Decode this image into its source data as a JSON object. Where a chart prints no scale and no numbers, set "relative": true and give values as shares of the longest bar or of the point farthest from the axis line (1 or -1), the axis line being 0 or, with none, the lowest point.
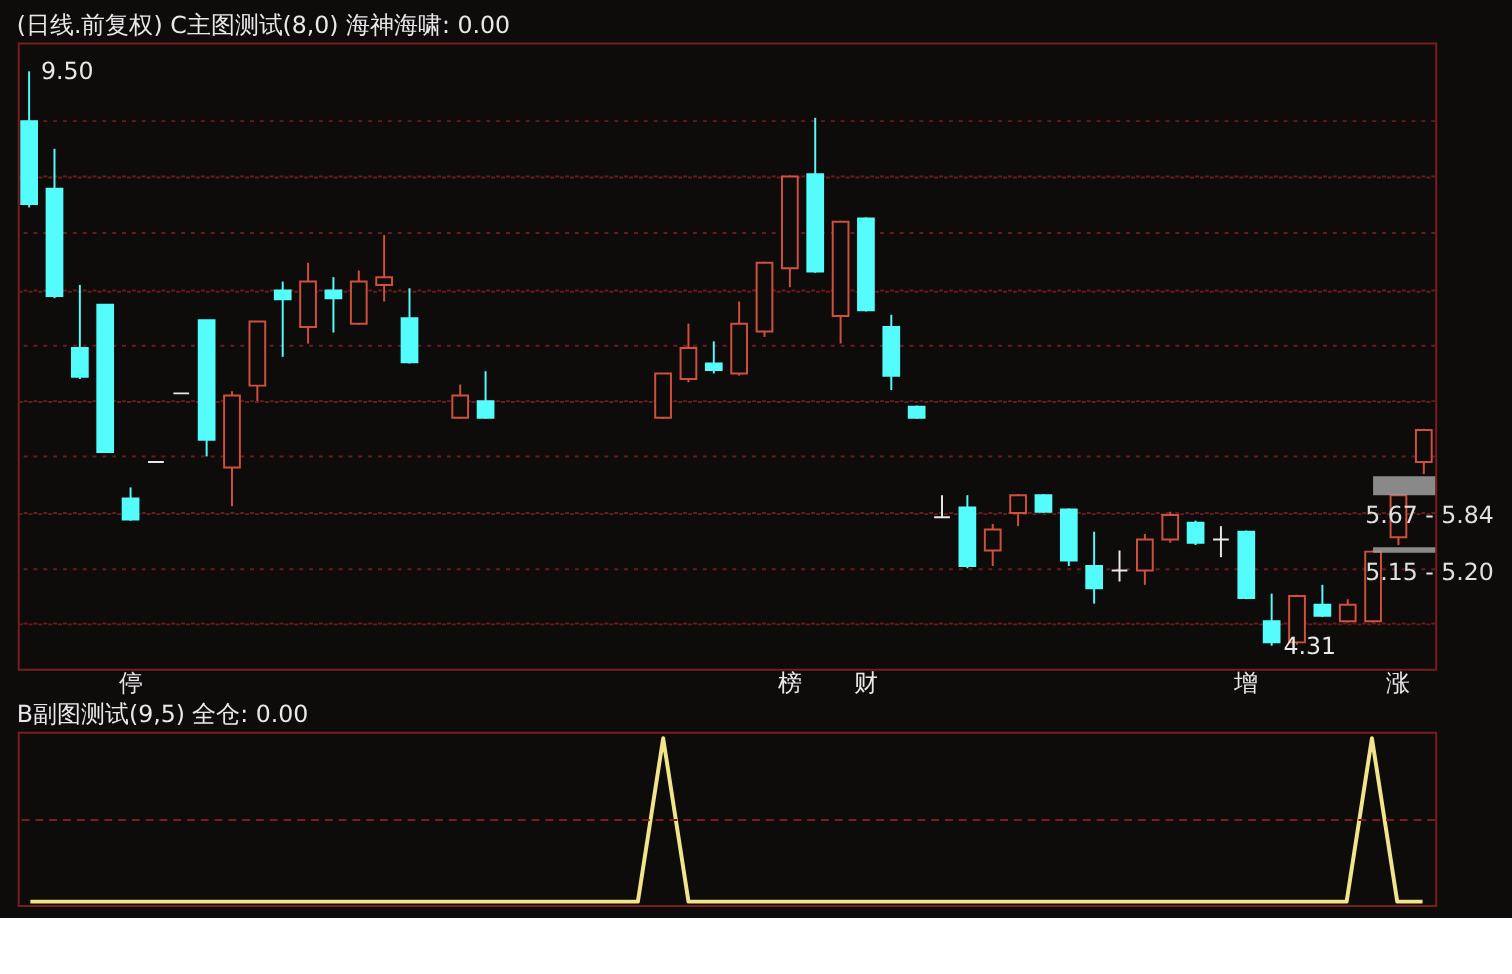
{
  "chart_data": [
    {
      "type": "candlestick",
      "title": "(日线.前复权) C主图测试(8,0) 海神海啸: 0.00",
      "categories": [
        null,
        null,
        null,
        null,
        "停",
        null,
        null,
        null,
        null,
        null,
        null,
        null,
        null,
        null,
        null,
        null,
        null,
        null,
        null,
        null,
        null,
        null,
        null,
        null,
        null,
        null,
        null,
        null,
        null,
        null,
        "榜",
        null,
        null,
        "财",
        null,
        null,
        null,
        null,
        null,
        null,
        null,
        null,
        null,
        null,
        null,
        null,
        null,
        null,
        "增",
        null,
        null,
        null,
        null,
        null,
        "涨",
        null
      ],
      "ohlc": [
        [
          9.05,
          9.5,
          8.27,
          8.3
        ],
        [
          8.44,
          8.8,
          7.45,
          7.47
        ],
        [
          7.0,
          7.57,
          6.72,
          6.74
        ],
        [
          7.39,
          7.39,
          6.06,
          6.06
        ],
        [
          5.64,
          5.74,
          5.44,
          5.45
        ],
        [
          5.97,
          5.97,
          5.97,
          5.97
        ],
        [
          6.59,
          6.59,
          6.59,
          6.59
        ],
        [
          7.25,
          7.25,
          6.02,
          6.17
        ],
        [
          5.92,
          6.61,
          5.57,
          6.57
        ],
        [
          6.66,
          7.24,
          6.52,
          7.24
        ],
        [
          7.52,
          7.6,
          6.92,
          7.44
        ],
        [
          7.19,
          7.77,
          7.04,
          7.6
        ],
        [
          7.52,
          7.64,
          7.14,
          7.45
        ],
        [
          7.22,
          7.7,
          7.21,
          7.6
        ],
        [
          7.57,
          8.02,
          7.42,
          7.64
        ],
        [
          7.27,
          7.54,
          6.86,
          6.87
        ],
        null,
        [
          6.37,
          6.67,
          6.36,
          6.57
        ],
        [
          6.52,
          6.79,
          6.36,
          6.37
        ],
        null,
        null,
        null,
        null,
        null,
        null,
        [
          6.37,
          6.77,
          6.36,
          6.77
        ],
        [
          6.72,
          7.22,
          6.69,
          7.0
        ],
        [
          6.86,
          7.06,
          6.77,
          6.8
        ],
        [
          6.77,
          7.42,
          6.75,
          7.22
        ],
        [
          7.15,
          7.78,
          7.1,
          7.77
        ],
        [
          7.72,
          8.56,
          7.55,
          8.55
        ],
        [
          8.57,
          9.08,
          7.68,
          7.69
        ],
        [
          7.29,
          8.15,
          7.04,
          8.14
        ],
        [
          8.17,
          8.18,
          7.33,
          7.34
        ],
        [
          7.19,
          7.3,
          6.62,
          6.75
        ],
        [
          6.47,
          6.48,
          6.36,
          6.37
        ],
        [
          5.47,
          5.67,
          5.47,
          5.47
        ],
        [
          5.56,
          5.67,
          5.01,
          5.03
        ],
        [
          5.17,
          5.41,
          5.03,
          5.36
        ],
        [
          5.51,
          5.68,
          5.39,
          5.67
        ],
        [
          5.67,
          5.68,
          5.51,
          5.52
        ],
        [
          5.54,
          5.55,
          5.03,
          5.08
        ],
        [
          5.03,
          5.34,
          4.69,
          4.83
        ],
        [
          4.99,
          5.17,
          4.89,
          4.99
        ],
        [
          4.99,
          5.32,
          4.86,
          5.27
        ],
        [
          5.27,
          5.52,
          5.24,
          5.49
        ],
        [
          5.42,
          5.44,
          5.22,
          5.24
        ],
        [
          5.27,
          5.39,
          5.11,
          5.27
        ],
        [
          5.34,
          5.35,
          4.73,
          4.74
        ],
        [
          4.53,
          4.78,
          4.31,
          4.34
        ],
        [
          4.34,
          4.77,
          4.32,
          4.76
        ],
        [
          4.68,
          4.86,
          4.57,
          4.58
        ],
        [
          4.53,
          4.73,
          4.52,
          4.68
        ],
        [
          4.53,
          5.17,
          4.52,
          5.16
        ],
        [
          5.29,
          5.68,
          5.22,
          5.67
        ],
        [
          5.97,
          6.27,
          5.86,
          6.26
        ]
      ],
      "yticks": [
        {
          "value": 4.51,
          "label": null
        },
        {
          "value": 5.0,
          "label": null
        },
        {
          "value": 5.51,
          "label": null
        },
        {
          "value": 6.02,
          "label": null
        },
        {
          "value": 6.52,
          "label": null
        },
        {
          "value": 7.02,
          "label": null
        },
        {
          "value": 7.52,
          "label": null
        },
        {
          "value": 8.04,
          "label": null
        },
        {
          "value": 8.55,
          "label": null
        },
        {
          "value": 9.05,
          "label": null
        }
      ],
      "grid": "y",
      "tick_labels": "x",
      "bands": [
        {
          "axis": "y",
          "from": 5.67,
          "to": 5.84,
          "label": "5.67 - 5.84",
          "color": "#a0a0a0"
        },
        {
          "axis": "y",
          "from": 5.15,
          "to": 5.2,
          "label": "5.15 - 5.20",
          "color": "#a0a0a0"
        }
      ],
      "annotations": [
        "9.50",
        "4.31"
      ]
    },
    {
      "type": "line",
      "title": "B副图测试(9,5)  全仓: 0.00",
      "relative": true,
      "tick_labels": false,
      "categories": [
        null,
        null,
        null,
        null,
        null,
        null,
        null,
        null,
        null,
        null,
        null,
        null,
        null,
        null,
        null,
        null,
        null,
        null,
        null,
        null,
        null,
        null,
        null,
        null,
        null,
        null,
        null,
        null,
        null,
        null,
        null,
        null,
        null,
        null,
        null,
        null,
        null,
        null,
        null,
        null,
        null,
        null,
        null,
        null,
        null,
        null,
        null,
        null,
        null,
        null,
        null,
        null,
        null,
        null,
        null,
        null
      ],
      "series": [
        {
          "color": "#f2e48a",
          "values": [
            0,
            0,
            0,
            0,
            0,
            0,
            0,
            0,
            0,
            0,
            0,
            0,
            0,
            0,
            0,
            0,
            0,
            0,
            0,
            0,
            0,
            0,
            0,
            0,
            0,
            1,
            0,
            0,
            0,
            0,
            0,
            0,
            0,
            0,
            0,
            0,
            0,
            0,
            0,
            0,
            0,
            0,
            0,
            0,
            0,
            0,
            0,
            0,
            0,
            0,
            0,
            0,
            0,
            1,
            0,
            0
          ]
        }
      ],
      "ref_lines": [
        {
          "axis": "y",
          "value": 0.5,
          "color": "#7a1e1e",
          "line_style": "dashed"
        }
      ]
    }
  ]
}
